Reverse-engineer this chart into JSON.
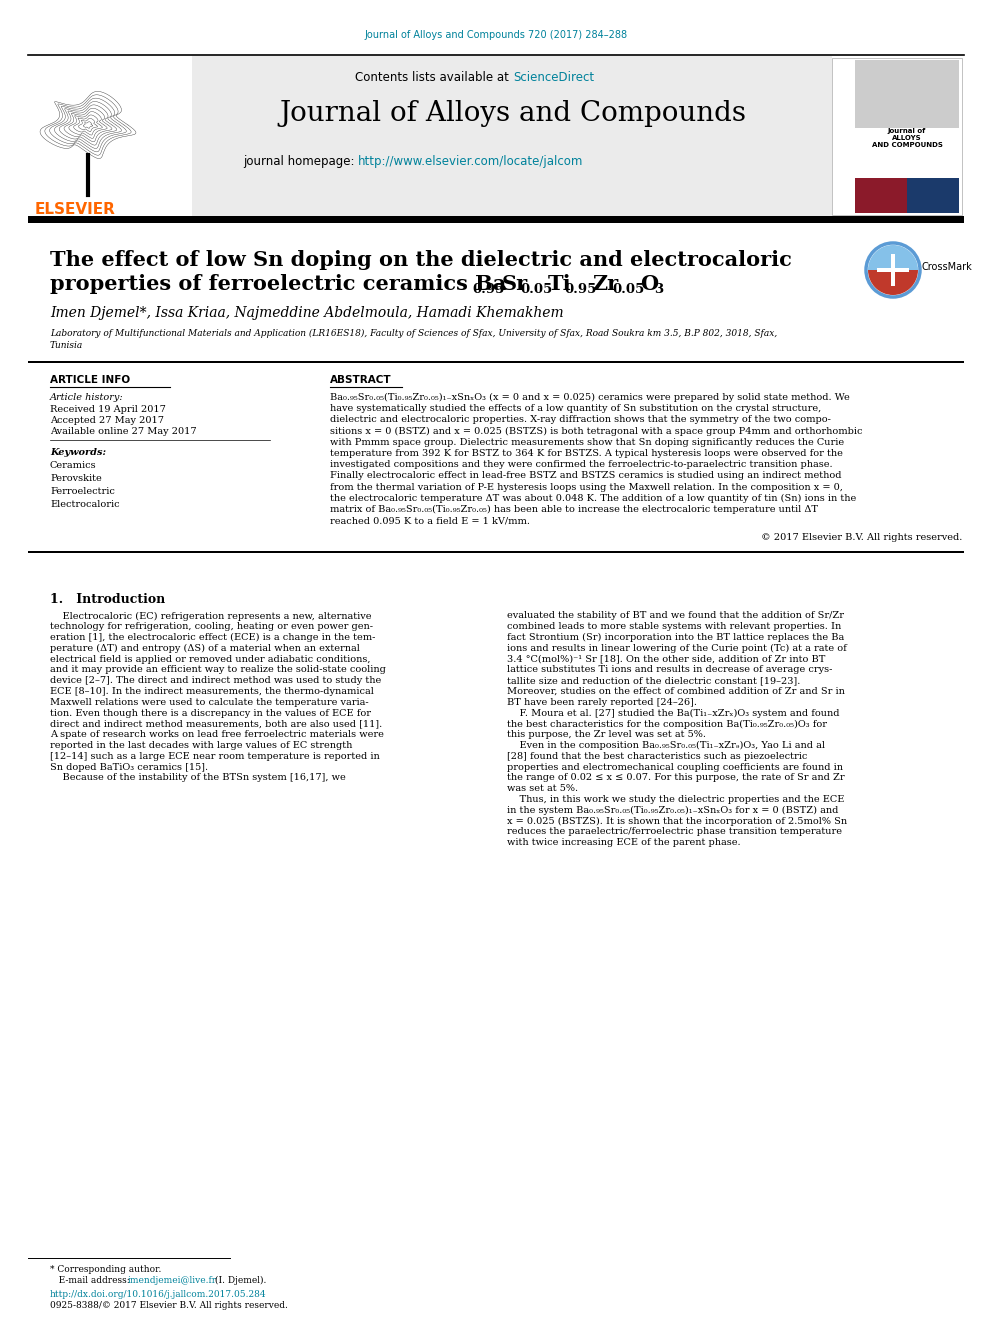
{
  "journal_ref": "Journal of Alloys and Compounds 720 (2017) 284–288",
  "journal_ref_color": "#00829B",
  "journal_name": "Journal of Alloys and Compounds",
  "contents_text": "Contents lists available at ",
  "sciencedirect_text": "ScienceDirect",
  "sciencedirect_color": "#00829B",
  "homepage_text": "journal homepage: ",
  "homepage_url": "http://www.elsevier.com/locate/jalcom",
  "homepage_url_color": "#00829B",
  "elsevier_color": "#FF6600",
  "paper_title_line1": "The effect of low Sn doping on the dielectric and electrocaloric",
  "paper_title_line2_pre": "properties of ferroelectric ceramics Ba",
  "paper_title_sub1": "0.95",
  "paper_title_sr": "Sr",
  "paper_title_sub2": "0.05",
  "paper_title_ti": "Ti",
  "paper_title_sub3": "0.95",
  "paper_title_zr": "Zr",
  "paper_title_sub4": "0.05",
  "paper_title_o": "O",
  "paper_title_sub5": "3",
  "authors": "Imen Djemel*, Issa Kriaa, Najmeddine Abdelmoula, Hamadi Khemakhem",
  "affiliation_line1": "Laboratory of Multifunctional Materials and Application (LR16ES18), Faculty of Sciences of Sfax, University of Sfax, Road Soukra km 3.5, B.P 802, 3018, Sfax,",
  "affiliation_line2": "Tunisia",
  "article_info_title": "ARTICLE INFO",
  "abstract_title": "ABSTRACT",
  "article_history_title": "Article history:",
  "received": "Received 19 April 2017",
  "accepted": "Accepted 27 May 2017",
  "available": "Available online 27 May 2017",
  "keywords_title": "Keywords:",
  "keywords": [
    "Ceramics",
    "Perovskite",
    "Ferroelectric",
    "Electrocaloric"
  ],
  "abstract_lines": [
    "Ba₀.₉₅Sr₀.₀₅(Ti₀.₉₅Zr₀.₀₅)₁₋xSnₓO₃ (x = 0 and x = 0.025) ceramics were prepared by solid state method. We",
    "have systematically studied the effects of a low quantity of Sn substitution on the crystal structure,",
    "dielectric and electrocaloric properties. X-ray diffraction shows that the symmetry of the two compo-",
    "sitions x = 0 (BSTZ) and x = 0.025 (BSTZS) is both tetragonal with a space group P4mm and orthorhombic",
    "with Pmmm space group. Dielectric measurements show that Sn doping significantly reduces the Curie",
    "temperature from 392 K for BSTZ to 364 K for BSTZS. A typical hysteresis loops were observed for the",
    "investigated compositions and they were confirmed the ferroelectric-to-paraelectric transition phase.",
    "Finally electrocaloric effect in lead-free BSTZ and BSTZS ceramics is studied using an indirect method",
    "from the thermal variation of P-E hysteresis loops using the Maxwell relation. In the composition x = 0,",
    "the electrocaloric temperature ΔT was about 0.048 K. The addition of a low quantity of tin (Sn) ions in the",
    "matrix of Ba₀.₉₅Sr₀.₀₅(Ti₀.₉₅Zr₀.₀₅) has been able to increase the electrocaloric temperature until ΔT",
    "reached 0.095 K to a field E = 1 kV/mm."
  ],
  "copyright": "© 2017 Elsevier B.V. All rights reserved.",
  "intro_title": "1.   Introduction",
  "col1_lines": [
    "    Electrocaloric (EC) refrigeration represents a new, alternative",
    "technology for refrigeration, cooling, heating or even power gen-",
    "eration [1], the electrocaloric effect (ECE) is a change in the tem-",
    "perature (ΔT) and entropy (ΔS) of a material when an external",
    "electrical field is applied or removed under adiabatic conditions,",
    "and it may provide an efficient way to realize the solid-state cooling",
    "device [2–7]. The direct and indirect method was used to study the",
    "ECE [8–10]. In the indirect measurements, the thermo-dynamical",
    "Maxwell relations were used to calculate the temperature varia-",
    "tion. Even though there is a discrepancy in the values of ECE for",
    "direct and indirect method measurements, both are also used [11].",
    "A spate of research works on lead free ferroelectric materials were",
    "reported in the last decades with large values of EC strength",
    "[12–14] such as a large ECE near room temperature is reported in",
    "Sn doped BaTiO₃ ceramics [15].",
    "    Because of the instability of the BTSn system [16,17], we"
  ],
  "col2_lines": [
    "evaluated the stability of BT and we found that the addition of Sr/Zr",
    "combined leads to more stable systems with relevant properties. In",
    "fact Strontium (Sr) incorporation into the BT lattice replaces the Ba",
    "ions and results in linear lowering of the Curie point (Tc) at a rate of",
    "3.4 °C(mol%)⁻¹ Sr [18]. On the other side, addition of Zr into BT",
    "lattice substitutes Ti ions and results in decrease of average crys-",
    "tallite size and reduction of the dielectric constant [19–23].",
    "Moreover, studies on the effect of combined addition of Zr and Sr in",
    "BT have been rarely reported [24–26].",
    "    F. Moura et al. [27] studied the Ba(Ti₁₋xZrₓ)O₃ system and found",
    "the best characteristics for the composition Ba(Ti₀.₉₅Zr₀.₀₅)O₃ for",
    "this purpose, the Zr level was set at 5%.",
    "    Even in the composition Ba₀.₉₅Sr₀.₀₅(Ti₁₋xZrₔ)O₃, Yao Li and al",
    "[28] found that the best characteristics such as piezoelectric",
    "properties and electromechanical coupling coefficients are found in",
    "the range of 0.02 ≤ x ≤ 0.07. For this purpose, the rate of Sr and Zr",
    "was set at 5%.",
    "    Thus, in this work we study the dielectric properties and the ECE",
    "in the system Ba₀.₉₅Sr₀.₀₅(Ti₀.₉₅Zr₀.₀₅)₁₋xSnₓO₃ for x = 0 (BSTZ) and",
    "x = 0.025 (BSTZS). It is shown that the incorporation of 2.5mol% Sn",
    "reduces the paraelectric/ferroelectric phase transition temperature",
    "with twice increasing ECE of the parent phase."
  ],
  "footer_star": "* Corresponding author.",
  "footer_email_label": "   E-mail address: ",
  "footer_email": "imendjemei@live.fr",
  "footer_email_suffix": " (I. Djemel).",
  "footer_doi": "http://dx.doi.org/10.1016/j.jallcom.2017.05.284",
  "footer_issn": "0925-8388/© 2017 Elsevier B.V. All rights reserved.",
  "bg_color": "#FFFFFF",
  "header_bg": "#EBEBEB",
  "accent_color": "#00829B",
  "crossmark_red": "#C0392B",
  "crossmark_blue": "#2980B9"
}
